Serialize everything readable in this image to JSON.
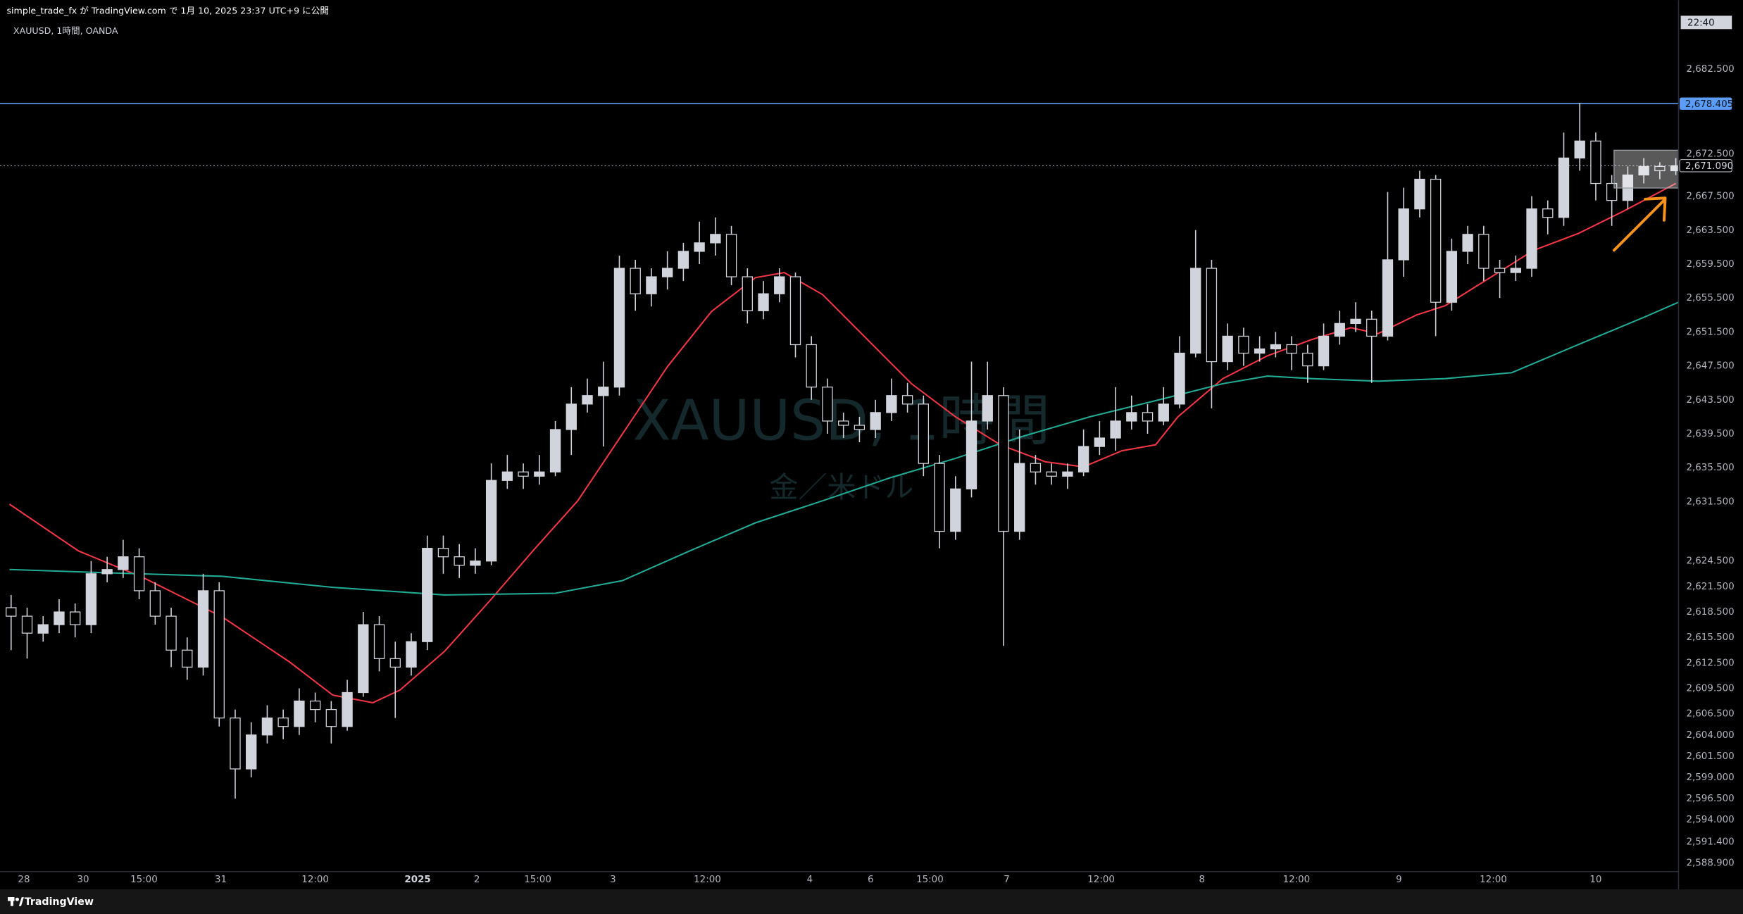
{
  "header": "simple_trade_fx が TradingView.com で 1月 10, 2025 23:37 UTC+9 に公開",
  "footer": "TradingView",
  "chart_data": {
    "type": "candlestick",
    "title": "XAUUSD, 1時間, OANDA",
    "watermark": "XAUUSD, 1時間",
    "watermark_sub": "金／米ドル",
    "time_label": "22:40",
    "up_color": "#d1d4dc",
    "down_color": "#000000",
    "wick_color": "#d1d4dc",
    "grid": false,
    "xlim": [
      -0.694,
      104.17
    ],
    "ylim": [
      2587.9,
      2690.6
    ],
    "xticks": [
      {
        "value": 0.8,
        "label": "28"
      },
      {
        "value": 4.5,
        "label": "30"
      },
      {
        "value": 8.3,
        "label": "15:00"
      },
      {
        "value": 13.1,
        "label": "31"
      },
      {
        "value": 19,
        "label": "12:00"
      },
      {
        "value": 25.4,
        "label": "2025",
        "bold": true
      },
      {
        "value": 29.1,
        "label": "2"
      },
      {
        "value": 32.9,
        "label": "15:00"
      },
      {
        "value": 37.6,
        "label": "3"
      },
      {
        "value": 43.5,
        "label": "12:00"
      },
      {
        "value": 49.9,
        "label": "4"
      },
      {
        "value": 53.7,
        "label": "6"
      },
      {
        "value": 57.4,
        "label": "15:00"
      },
      {
        "value": 62.2,
        "label": "7"
      },
      {
        "value": 68.1,
        "label": "12:00"
      },
      {
        "value": 74.4,
        "label": "8"
      },
      {
        "value": 80.3,
        "label": "12:00"
      },
      {
        "value": 86.7,
        "label": "9"
      },
      {
        "value": 92.6,
        "label": "12:00"
      },
      {
        "value": 99,
        "label": "10"
      }
    ],
    "yticks": [
      {
        "value": 2682.5,
        "label": "2,682.500"
      },
      {
        "value": 2672.5,
        "label": "2,672.500"
      },
      {
        "value": 2667.5,
        "label": "2,667.500"
      },
      {
        "value": 2663.5,
        "label": "2,663.500"
      },
      {
        "value": 2659.5,
        "label": "2,659.500"
      },
      {
        "value": 2655.5,
        "label": "2,655.500"
      },
      {
        "value": 2651.5,
        "label": "2,651.500"
      },
      {
        "value": 2647.5,
        "label": "2,647.500"
      },
      {
        "value": 2643.5,
        "label": "2,643.500"
      },
      {
        "value": 2639.5,
        "label": "2,639.500"
      },
      {
        "value": 2635.5,
        "label": "2,635.500"
      },
      {
        "value": 2631.5,
        "label": "2,631.500"
      },
      {
        "value": 2624.5,
        "label": "2,624.500"
      },
      {
        "value": 2621.5,
        "label": "2,621.500"
      },
      {
        "value": 2618.5,
        "label": "2,618.500"
      },
      {
        "value": 2615.5,
        "label": "2,615.500"
      },
      {
        "value": 2612.5,
        "label": "2,612.500"
      },
      {
        "value": 2609.5,
        "label": "2,609.500"
      },
      {
        "value": 2606.5,
        "label": "2,606.500"
      },
      {
        "value": 2604,
        "label": "2,604.000"
      },
      {
        "value": 2601.5,
        "label": "2,601.500"
      },
      {
        "value": 2599,
        "label": "2,599.000"
      },
      {
        "value": 2596.5,
        "label": "2,596.500"
      },
      {
        "value": 2594,
        "label": "2,594.000"
      },
      {
        "value": 2591.4,
        "label": "2,591.400"
      },
      {
        "value": 2588.9,
        "label": "2,588.900"
      }
    ],
    "lines": [
      {
        "value": 2678.405,
        "label": "2,678.405",
        "color": "#5b9cf6",
        "style": "solid"
      },
      {
        "value": 2671.09,
        "label": "2,671.090",
        "color": "#9598a1",
        "style": "dotted"
      }
    ],
    "candles": [
      [
        2619,
        2620.5,
        2614,
        2618
      ],
      [
        2618,
        2619,
        2613,
        2616
      ],
      [
        2616,
        2618,
        2615,
        2617
      ],
      [
        2617,
        2620,
        2616,
        2618.5
      ],
      [
        2618.5,
        2619.5,
        2615.5,
        2617
      ],
      [
        2617,
        2624.5,
        2616,
        2623
      ],
      [
        2623,
        2625,
        2622,
        2623.5
      ],
      [
        2623.5,
        2627,
        2622.5,
        2625
      ],
      [
        2625,
        2626,
        2620,
        2621
      ],
      [
        2621,
        2622,
        2617,
        2618
      ],
      [
        2618,
        2619,
        2612,
        2614
      ],
      [
        2614,
        2615.5,
        2610.5,
        2612
      ],
      [
        2612,
        2623,
        2611,
        2621
      ],
      [
        2621,
        2622,
        2605,
        2606
      ],
      [
        2606,
        2607,
        2596.5,
        2600
      ],
      [
        2600,
        2605.5,
        2599,
        2604
      ],
      [
        2604,
        2607.5,
        2603,
        2606
      ],
      [
        2606,
        2607,
        2603.5,
        2605
      ],
      [
        2605,
        2609.5,
        2604,
        2608
      ],
      [
        2608,
        2609,
        2605.5,
        2607
      ],
      [
        2607,
        2608,
        2603,
        2605
      ],
      [
        2605,
        2610.5,
        2604.5,
        2609
      ],
      [
        2609,
        2618.5,
        2608.5,
        2617
      ],
      [
        2617,
        2618,
        2611.5,
        2613
      ],
      [
        2613,
        2615,
        2606,
        2612
      ],
      [
        2612,
        2616,
        2611,
        2615
      ],
      [
        2615,
        2627.5,
        2614,
        2626
      ],
      [
        2626,
        2627.5,
        2623,
        2625
      ],
      [
        2625,
        2626.5,
        2622.5,
        2624
      ],
      [
        2624,
        2626,
        2623,
        2624.5
      ],
      [
        2624.5,
        2636,
        2624,
        2634
      ],
      [
        2634,
        2637,
        2633,
        2635
      ],
      [
        2635,
        2636,
        2633,
        2634.5
      ],
      [
        2634.5,
        2637,
        2633.5,
        2635
      ],
      [
        2635,
        2641,
        2634.5,
        2640
      ],
      [
        2640,
        2645,
        2637,
        2643
      ],
      [
        2643,
        2646,
        2642,
        2644
      ],
      [
        2644,
        2648,
        2638,
        2645
      ],
      [
        2645,
        2660.5,
        2644,
        2659
      ],
      [
        2659,
        2660,
        2654,
        2656
      ],
      [
        2656,
        2659,
        2654.5,
        2658
      ],
      [
        2658,
        2661,
        2656.5,
        2659
      ],
      [
        2659,
        2662,
        2657.5,
        2661
      ],
      [
        2661,
        2664.5,
        2659.5,
        2662
      ],
      [
        2662,
        2665,
        2660.5,
        2663
      ],
      [
        2663,
        2664,
        2657,
        2658
      ],
      [
        2658,
        2659,
        2652.5,
        2654
      ],
      [
        2654,
        2657.5,
        2653,
        2656
      ],
      [
        2656,
        2659,
        2655,
        2658
      ],
      [
        2658,
        2658.5,
        2648.5,
        2650
      ],
      [
        2650,
        2651,
        2643.5,
        2645
      ],
      [
        2645,
        2646,
        2639.5,
        2641
      ],
      [
        2641,
        2642,
        2639,
        2640.5
      ],
      [
        2640.5,
        2641.5,
        2638.5,
        2640
      ],
      [
        2640,
        2643.5,
        2639,
        2642
      ],
      [
        2642,
        2646,
        2641,
        2644
      ],
      [
        2644,
        2645.5,
        2642,
        2643
      ],
      [
        2643,
        2644,
        2634.5,
        2636
      ],
      [
        2636,
        2637,
        2626,
        2628
      ],
      [
        2628,
        2634.5,
        2627,
        2633
      ],
      [
        2633,
        2648,
        2632,
        2641
      ],
      [
        2641,
        2648,
        2640,
        2644
      ],
      [
        2644,
        2645,
        2614.5,
        2628
      ],
      [
        2628,
        2640,
        2627,
        2636
      ],
      [
        2636,
        2637,
        2633.5,
        2635
      ],
      [
        2635,
        2636,
        2633.5,
        2634.5
      ],
      [
        2634.5,
        2636,
        2633,
        2635
      ],
      [
        2635,
        2640,
        2634.5,
        2638
      ],
      [
        2638,
        2641,
        2637,
        2639
      ],
      [
        2639,
        2645,
        2637.5,
        2641
      ],
      [
        2641,
        2644,
        2640,
        2642
      ],
      [
        2642,
        2643,
        2639.5,
        2641
      ],
      [
        2641,
        2645,
        2640.5,
        2643
      ],
      [
        2643,
        2651,
        2642.5,
        2649
      ],
      [
        2649,
        2663.5,
        2648.5,
        2659
      ],
      [
        2659,
        2660,
        2642.5,
        2648
      ],
      [
        2648,
        2652.5,
        2647,
        2651
      ],
      [
        2651,
        2652,
        2647.5,
        2649
      ],
      [
        2649,
        2651,
        2648,
        2649.5
      ],
      [
        2649.5,
        2651.5,
        2648.5,
        2650
      ],
      [
        2650,
        2651,
        2647,
        2649
      ],
      [
        2649,
        2650,
        2645.5,
        2647.5
      ],
      [
        2647.5,
        2652.5,
        2647,
        2651
      ],
      [
        2651,
        2654,
        2650,
        2652.5
      ],
      [
        2652.5,
        2655,
        2651.5,
        2653
      ],
      [
        2653,
        2654,
        2645.5,
        2651
      ],
      [
        2651,
        2668,
        2650.5,
        2660
      ],
      [
        2660,
        2668.5,
        2658,
        2666
      ],
      [
        2666,
        2670.5,
        2665,
        2669.5
      ],
      [
        2669.5,
        2670,
        2651,
        2655
      ],
      [
        2655,
        2662.5,
        2654,
        2661
      ],
      [
        2661,
        2664,
        2659.5,
        2663
      ],
      [
        2663,
        2664,
        2657.5,
        2659
      ],
      [
        2659,
        2660,
        2655.5,
        2658.5
      ],
      [
        2658.5,
        2660.5,
        2657.5,
        2659
      ],
      [
        2659,
        2667.5,
        2658,
        2666
      ],
      [
        2666,
        2667,
        2663,
        2665
      ],
      [
        2665,
        2675,
        2664,
        2672
      ],
      [
        2672,
        2678.5,
        2670.5,
        2674
      ],
      [
        2674,
        2675,
        2667,
        2669
      ],
      [
        2669,
        2670,
        2664,
        2667
      ],
      [
        2667,
        2671,
        2666,
        2670
      ],
      [
        2670,
        2672,
        2669,
        2671
      ],
      [
        2671,
        2671.5,
        2669.5,
        2670.5
      ],
      [
        2670.5,
        2672,
        2670,
        2671.09
      ]
    ],
    "series": [
      {
        "color": "#f23645",
        "x": [
          -0.1,
          4.2,
          8.3,
          13.2,
          17.4,
          20.1,
          22.6,
          24.3,
          27.1,
          29.9,
          32.6,
          35.4,
          38.2,
          41,
          43.75,
          46.5,
          48.3,
          50.7,
          53.5,
          56.25,
          59,
          61.8,
          64.6,
          67,
          69.4,
          71.5,
          72.9,
          75.7,
          78.5,
          81.25,
          83.7,
          85.4,
          87.8,
          89.6,
          92.4,
          95.1,
          97.9,
          100.7,
          104
        ],
        "values": [
          2631.2,
          2625.7,
          2622.5,
          2617.9,
          2612.6,
          2608.7,
          2607.8,
          2609.3,
          2613.9,
          2619.8,
          2625.7,
          2631.6,
          2639.5,
          2647.4,
          2653.9,
          2657.9,
          2658.5,
          2655.9,
          2650.6,
          2645.4,
          2641.5,
          2638.2,
          2636.2,
          2635.6,
          2637.5,
          2638.2,
          2641.5,
          2646,
          2648.7,
          2650.6,
          2652,
          2651.3,
          2653.5,
          2654.6,
          2657.9,
          2661.1,
          2663.1,
          2665.7,
          2669
        ]
      },
      {
        "color": "#22ab94",
        "x": [
          -0.1,
          6.25,
          13.2,
          20.1,
          27.1,
          34,
          38.2,
          42.4,
          46.5,
          50.7,
          54.9,
          59,
          63.2,
          67.4,
          71.5,
          75.7,
          78.5,
          81.25,
          85.4,
          89.6,
          93.75,
          97.9,
          102.1,
          104.17
        ],
        "values": [
          2623.5,
          2623.1,
          2622.7,
          2621.4,
          2620.5,
          2620.7,
          2622.2,
          2625.7,
          2629,
          2631.6,
          2634.3,
          2636.6,
          2639.2,
          2641.5,
          2643.4,
          2645.4,
          2646.3,
          2646,
          2645.7,
          2646,
          2646.7,
          2650,
          2653.3,
          2655
        ]
      }
    ]
  }
}
